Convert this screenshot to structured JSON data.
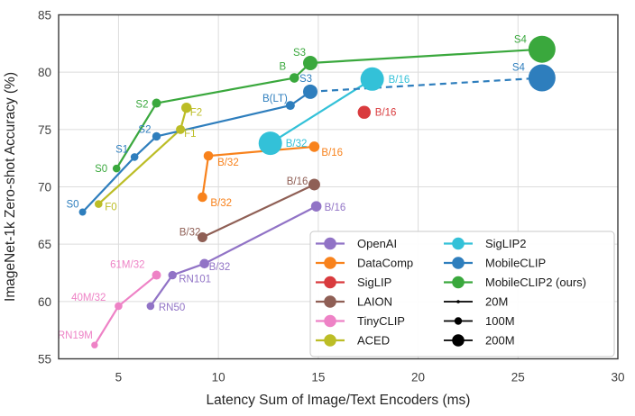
{
  "chart_data": {
    "type": "scatter",
    "title": "",
    "xlabel": "Latency Sum of Image/Text Encoders (ms)",
    "ylabel": "ImageNet-1k Zero-shot Accuracy (%)",
    "xlim": [
      2,
      30
    ],
    "ylim": [
      55,
      85
    ],
    "x_ticks": [
      5,
      10,
      15,
      20,
      25,
      30
    ],
    "y_ticks": [
      55,
      60,
      65,
      70,
      75,
      80,
      85
    ],
    "grid": true,
    "legend_position": "lower right",
    "series": [
      {
        "name": "OpenAI",
        "color": "#9173c6",
        "points": [
          {
            "label": "RN50",
            "x": 6.6,
            "y": 59.6,
            "r": 4.3,
            "anchor": "start",
            "dx": 9,
            "dy": 5
          },
          {
            "label": "RN101",
            "x": 7.7,
            "y": 62.3,
            "r": 4.7,
            "anchor": "start",
            "dx": 7,
            "dy": 8
          },
          {
            "label": "B/32",
            "x": 9.3,
            "y": 63.3,
            "r": 5.3,
            "anchor": "start",
            "dx": 5,
            "dy": 7
          },
          {
            "label": "B/16",
            "x": 14.9,
            "y": 68.3,
            "r": 5.8,
            "anchor": "start",
            "dx": 9,
            "dy": 5
          }
        ]
      },
      {
        "name": "DataComp",
        "color": "#f8821c",
        "points": [
          {
            "label": "B/32",
            "x": 9.2,
            "y": 69.1,
            "r": 5.3,
            "anchor": "start",
            "dx": 9,
            "dy": 10
          },
          {
            "label": "B/32",
            "x": 9.5,
            "y": 72.7,
            "r": 5.3,
            "anchor": "start",
            "dx": 10,
            "dy": 11
          },
          {
            "label": "B/16",
            "x": 14.8,
            "y": 73.5,
            "r": 5.8,
            "anchor": "start",
            "dx": 8,
            "dy": 10
          }
        ]
      },
      {
        "name": "SigLIP",
        "color": "#d93b3e",
        "points": [
          {
            "label": "B/16",
            "x": 17.3,
            "y": 76.5,
            "r": 7.2,
            "anchor": "start",
            "dx": 12,
            "dy": 4
          }
        ]
      },
      {
        "name": "LAION",
        "color": "#8f5f55",
        "points": [
          {
            "label": "B/32",
            "x": 9.2,
            "y": 65.6,
            "r": 5.5,
            "anchor": "end",
            "dx": -2,
            "dy": -2
          },
          {
            "label": "B/16",
            "x": 14.8,
            "y": 70.2,
            "r": 6.5,
            "anchor": "end",
            "dx": -7,
            "dy": 0
          }
        ]
      },
      {
        "name": "TinyCLIP",
        "color": "#ee82c6",
        "points": [
          {
            "label": "RN19M",
            "x": 3.8,
            "y": 56.2,
            "r": 3.7,
            "anchor": "end",
            "dx": -2,
            "dy": -7
          },
          {
            "label": "40M/32",
            "x": 5.0,
            "y": 59.6,
            "r": 4.3,
            "anchor": "end",
            "dx": -14,
            "dy": -6
          },
          {
            "label": "61M/32",
            "x": 6.9,
            "y": 62.3,
            "r": 5.0,
            "anchor": "end",
            "dx": -13,
            "dy": -8
          }
        ]
      },
      {
        "name": "ACED",
        "color": "#bcbd26",
        "points": [
          {
            "label": "F0",
            "x": 4.0,
            "y": 68.5,
            "r": 4.3,
            "anchor": "start",
            "dx": 7,
            "dy": 7
          },
          {
            "label": "F1",
            "x": 8.1,
            "y": 75.0,
            "r": 5.0,
            "anchor": "start",
            "dx": 4,
            "dy": 8
          },
          {
            "label": "F2",
            "x": 8.4,
            "y": 76.9,
            "r": 5.7,
            "anchor": "start",
            "dx": 4,
            "dy": 9
          }
        ]
      },
      {
        "name": "SigLIP2",
        "color": "#33c1d8",
        "points": [
          {
            "label": "B/32",
            "x": 12.6,
            "y": 73.8,
            "r": 13,
            "anchor": "start",
            "dx": 17,
            "dy": 4
          },
          {
            "label": "B/16",
            "x": 17.7,
            "y": 79.4,
            "r": 13,
            "anchor": "start",
            "dx": 18,
            "dy": 4
          }
        ]
      },
      {
        "name": "MobileCLIP",
        "color": "#2e7ebd",
        "dash_segments": [
          [
            4,
            5
          ]
        ],
        "points": [
          {
            "label": "S0",
            "x": 3.2,
            "y": 67.8,
            "r": 4.0,
            "anchor": "end",
            "dx": -4,
            "dy": -5
          },
          {
            "label": "S1",
            "x": 5.8,
            "y": 72.6,
            "r": 4.3,
            "anchor": "end",
            "dx": -7,
            "dy": -5
          },
          {
            "label": "S2",
            "x": 6.9,
            "y": 74.4,
            "r": 4.7,
            "anchor": "end",
            "dx": -6,
            "dy": -4
          },
          {
            "label": "B(LT)",
            "x": 13.6,
            "y": 77.1,
            "r": 5.0,
            "anchor": "end",
            "dx": -3,
            "dy": -4
          },
          {
            "label": "S3",
            "x": 14.6,
            "y": 78.3,
            "r": 8.0,
            "anchor": "middle",
            "dx": -5,
            "dy": -11
          },
          {
            "label": "S4",
            "x": 26.2,
            "y": 79.5,
            "r": 15,
            "anchor": "middle",
            "dx": -26,
            "dy": -8
          }
        ]
      },
      {
        "name": "MobileCLIP2 (ours)",
        "color": "#3aa83d",
        "points": [
          {
            "label": "S0",
            "x": 4.9,
            "y": 71.6,
            "r": 4.3,
            "anchor": "end",
            "dx": -10,
            "dy": 4
          },
          {
            "label": "S2",
            "x": 6.9,
            "y": 77.3,
            "r": 5.0,
            "anchor": "end",
            "dx": -9,
            "dy": 5
          },
          {
            "label": "B",
            "x": 13.8,
            "y": 79.5,
            "r": 5.3,
            "anchor": "middle",
            "dx": -13,
            "dy": -9
          },
          {
            "label": "S3",
            "x": 14.6,
            "y": 80.8,
            "r": 8.0,
            "anchor": "middle",
            "dx": -12,
            "dy": -8
          },
          {
            "label": "S4",
            "x": 26.2,
            "y": 82.0,
            "r": 15,
            "anchor": "middle",
            "dx": -24,
            "dy": -7
          }
        ]
      }
    ],
    "size_legend": [
      {
        "label": "20M",
        "r": 1.8
      },
      {
        "label": "100M",
        "r": 4.2
      },
      {
        "label": "200M",
        "r": 6.8
      }
    ]
  },
  "style": {
    "grid_color": "#dcdcdc",
    "border_color": "#3a3a3a",
    "tick_color": "#404040",
    "axis_label_color": "#262626",
    "legend_text_color": "#1a1a1a",
    "legend_border_color": "#c9c9c9",
    "legend_bg": "#ffffff",
    "size_marker_color": "#000000"
  }
}
